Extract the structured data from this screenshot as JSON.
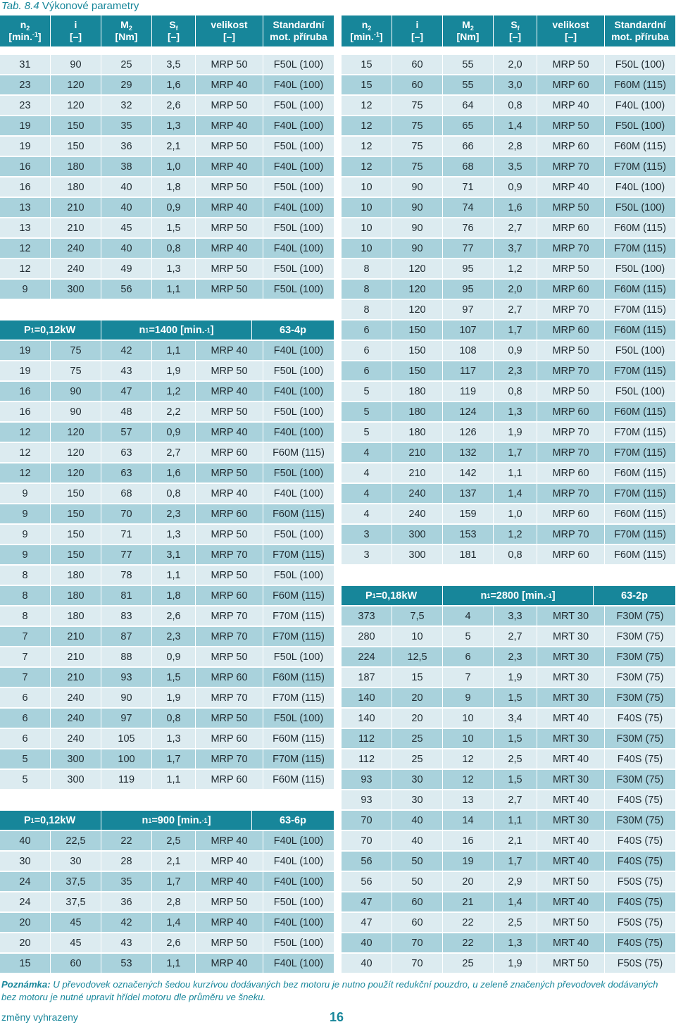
{
  "title": {
    "prefix": "Tab. 8.4 ",
    "text": "Výkonové parametry"
  },
  "header": {
    "n2": "n",
    "n2_sub": "2",
    "n2_unit_a": "[min.",
    "n2_unit_sup": "-1",
    "n2_unit_b": "]",
    "i": "i",
    "i_unit": "[–]",
    "m2": "M",
    "m2_sub": "2",
    "m2_unit": "[Nm]",
    "sf": "S",
    "sf_sub": "f",
    "sf_unit": "[–]",
    "size": "velikost",
    "size_unit": "[–]",
    "flange_a": "Standardní",
    "flange_b": "mot. příruba"
  },
  "left_sections": [
    {
      "header": null,
      "rows": [
        [
          "31",
          "90",
          "25",
          "3,5",
          "MRP 50",
          "F50L (100)"
        ],
        [
          "23",
          "120",
          "29",
          "1,6",
          "MRP 40",
          "F40L (100)"
        ],
        [
          "23",
          "120",
          "32",
          "2,6",
          "MRP 50",
          "F50L (100)"
        ],
        [
          "19",
          "150",
          "35",
          "1,3",
          "MRP 40",
          "F40L (100)"
        ],
        [
          "19",
          "150",
          "36",
          "2,1",
          "MRP 50",
          "F50L (100)"
        ],
        [
          "16",
          "180",
          "38",
          "1,0",
          "MRP 40",
          "F40L (100)"
        ],
        [
          "16",
          "180",
          "40",
          "1,8",
          "MRP 50",
          "F50L (100)"
        ],
        [
          "13",
          "210",
          "40",
          "0,9",
          "MRP 40",
          "F40L (100)"
        ],
        [
          "13",
          "210",
          "45",
          "1,5",
          "MRP 50",
          "F50L (100)"
        ],
        [
          "12",
          "240",
          "40",
          "0,8",
          "MRP 40",
          "F40L (100)"
        ],
        [
          "12",
          "240",
          "49",
          "1,3",
          "MRP 50",
          "F50L (100)"
        ],
        [
          "9",
          "300",
          "56",
          "1,1",
          "MRP 50",
          "F50L (100)"
        ]
      ]
    },
    {
      "header": {
        "p_a": "P",
        "p_sub": "1",
        "p_b": "=0,12kW",
        "n_a": "n",
        "n_sub": "1",
        "n_b": "=1400 [min.",
        "n_sup": "-1",
        "n_c": "]",
        "motor": "63-4p"
      },
      "rows": [
        [
          "19",
          "75",
          "42",
          "1,1",
          "MRP 40",
          "F40L (100)"
        ],
        [
          "19",
          "75",
          "43",
          "1,9",
          "MRP 50",
          "F50L (100)"
        ],
        [
          "16",
          "90",
          "47",
          "1,2",
          "MRP 40",
          "F40L (100)"
        ],
        [
          "16",
          "90",
          "48",
          "2,2",
          "MRP 50",
          "F50L (100)"
        ],
        [
          "12",
          "120",
          "57",
          "0,9",
          "MRP 40",
          "F40L (100)"
        ],
        [
          "12",
          "120",
          "63",
          "2,7",
          "MRP 60",
          "F60M (115)"
        ],
        [
          "12",
          "120",
          "63",
          "1,6",
          "MRP 50",
          "F50L (100)"
        ],
        [
          "9",
          "150",
          "68",
          "0,8",
          "MRP 40",
          "F40L (100)"
        ],
        [
          "9",
          "150",
          "70",
          "2,3",
          "MRP 60",
          "F60M (115)"
        ],
        [
          "9",
          "150",
          "71",
          "1,3",
          "MRP 50",
          "F50L (100)"
        ],
        [
          "9",
          "150",
          "77",
          "3,1",
          "MRP 70",
          "F70M (115)"
        ],
        [
          "8",
          "180",
          "78",
          "1,1",
          "MRP 50",
          "F50L (100)"
        ],
        [
          "8",
          "180",
          "81",
          "1,8",
          "MRP 60",
          "F60M (115)"
        ],
        [
          "8",
          "180",
          "83",
          "2,6",
          "MRP 70",
          "F70M (115)"
        ],
        [
          "7",
          "210",
          "87",
          "2,3",
          "MRP 70",
          "F70M (115)"
        ],
        [
          "7",
          "210",
          "88",
          "0,9",
          "MRP 50",
          "F50L (100)"
        ],
        [
          "7",
          "210",
          "93",
          "1,5",
          "MRP 60",
          "F60M (115)"
        ],
        [
          "6",
          "240",
          "90",
          "1,9",
          "MRP 70",
          "F70M (115)"
        ],
        [
          "6",
          "240",
          "97",
          "0,8",
          "MRP 50",
          "F50L (100)"
        ],
        [
          "6",
          "240",
          "105",
          "1,3",
          "MRP 60",
          "F60M (115)"
        ],
        [
          "5",
          "300",
          "100",
          "1,7",
          "MRP 70",
          "F70M (115)"
        ],
        [
          "5",
          "300",
          "119",
          "1,1",
          "MRP 60",
          "F60M (115)"
        ]
      ]
    },
    {
      "header": {
        "p_a": "P",
        "p_sub": "1",
        "p_b": "=0,12kW",
        "n_a": "n",
        "n_sub": "1",
        "n_b": "=900 [min.",
        "n_sup": "-1",
        "n_c": "]",
        "motor": "63-6p"
      },
      "rows": [
        [
          "40",
          "22,5",
          "22",
          "2,5",
          "MRP 40",
          "F40L (100)"
        ],
        [
          "30",
          "30",
          "28",
          "2,1",
          "MRP 40",
          "F40L (100)"
        ],
        [
          "24",
          "37,5",
          "35",
          "1,7",
          "MRP 40",
          "F40L (100)"
        ],
        [
          "24",
          "37,5",
          "36",
          "2,8",
          "MRP 50",
          "F50L (100)"
        ],
        [
          "20",
          "45",
          "42",
          "1,4",
          "MRP 40",
          "F40L (100)"
        ],
        [
          "20",
          "45",
          "43",
          "2,6",
          "MRP 50",
          "F50L (100)"
        ],
        [
          "15",
          "60",
          "53",
          "1,1",
          "MRP 40",
          "F40L (100)"
        ]
      ]
    }
  ],
  "right_sections": [
    {
      "header": null,
      "rows": [
        [
          "15",
          "60",
          "55",
          "2,0",
          "MRP 50",
          "F50L (100)"
        ],
        [
          "15",
          "60",
          "55",
          "3,0",
          "MRP 60",
          "F60M (115)"
        ],
        [
          "12",
          "75",
          "64",
          "0,8",
          "MRP 40",
          "F40L (100)"
        ],
        [
          "12",
          "75",
          "65",
          "1,4",
          "MRP 50",
          "F50L (100)"
        ],
        [
          "12",
          "75",
          "66",
          "2,8",
          "MRP 60",
          "F60M (115)"
        ],
        [
          "12",
          "75",
          "68",
          "3,5",
          "MRP 70",
          "F70M (115)"
        ],
        [
          "10",
          "90",
          "71",
          "0,9",
          "MRP 40",
          "F40L (100)"
        ],
        [
          "10",
          "90",
          "74",
          "1,6",
          "MRP 50",
          "F50L (100)"
        ],
        [
          "10",
          "90",
          "76",
          "2,7",
          "MRP 60",
          "F60M (115)"
        ],
        [
          "10",
          "90",
          "77",
          "3,7",
          "MRP 70",
          "F70M (115)"
        ],
        [
          "8",
          "120",
          "95",
          "1,2",
          "MRP 50",
          "F50L (100)"
        ],
        [
          "8",
          "120",
          "95",
          "2,0",
          "MRP 60",
          "F60M (115)"
        ],
        [
          "8",
          "120",
          "97",
          "2,7",
          "MRP 70",
          "F70M (115)"
        ],
        [
          "6",
          "150",
          "107",
          "1,7",
          "MRP 60",
          "F60M (115)"
        ],
        [
          "6",
          "150",
          "108",
          "0,9",
          "MRP 50",
          "F50L (100)"
        ],
        [
          "6",
          "150",
          "117",
          "2,3",
          "MRP 70",
          "F70M (115)"
        ],
        [
          "5",
          "180",
          "119",
          "0,8",
          "MRP 50",
          "F50L (100)"
        ],
        [
          "5",
          "180",
          "124",
          "1,3",
          "MRP 60",
          "F60M (115)"
        ],
        [
          "5",
          "180",
          "126",
          "1,9",
          "MRP 70",
          "F70M (115)"
        ],
        [
          "4",
          "210",
          "132",
          "1,7",
          "MRP 70",
          "F70M (115)"
        ],
        [
          "4",
          "210",
          "142",
          "1,1",
          "MRP 60",
          "F60M (115)"
        ],
        [
          "4",
          "240",
          "137",
          "1,4",
          "MRP 70",
          "F70M (115)"
        ],
        [
          "4",
          "240",
          "159",
          "1,0",
          "MRP 60",
          "F60M (115)"
        ],
        [
          "3",
          "300",
          "153",
          "1,2",
          "MRP 70",
          "F70M (115)"
        ],
        [
          "3",
          "300",
          "181",
          "0,8",
          "MRP 60",
          "F60M (115)"
        ]
      ]
    },
    {
      "header": {
        "p_a": "P",
        "p_sub": "1",
        "p_b": "=0,18kW",
        "n_a": "n",
        "n_sub": "1",
        "n_b": "=2800 [min.",
        "n_sup": "-1",
        "n_c": "]",
        "motor": "63-2p"
      },
      "rows": [
        [
          "373",
          "7,5",
          "4",
          "3,3",
          "MRT 30",
          "F30M (75)"
        ],
        [
          "280",
          "10",
          "5",
          "2,7",
          "MRT 30",
          "F30M (75)"
        ],
        [
          "224",
          "12,5",
          "6",
          "2,3",
          "MRT 30",
          "F30M (75)"
        ],
        [
          "187",
          "15",
          "7",
          "1,9",
          "MRT 30",
          "F30M (75)"
        ],
        [
          "140",
          "20",
          "9",
          "1,5",
          "MRT 30",
          "F30M (75)"
        ],
        [
          "140",
          "20",
          "10",
          "3,4",
          "MRT 40",
          "F40S (75)"
        ],
        [
          "112",
          "25",
          "10",
          "1,5",
          "MRT 30",
          "F30M (75)"
        ],
        [
          "112",
          "25",
          "12",
          "2,5",
          "MRT 40",
          "F40S (75)"
        ],
        [
          "93",
          "30",
          "12",
          "1,5",
          "MRT 30",
          "F30M (75)"
        ],
        [
          "93",
          "30",
          "13",
          "2,7",
          "MRT 40",
          "F40S (75)"
        ],
        [
          "70",
          "40",
          "14",
          "1,1",
          "MRT 30",
          "F30M (75)"
        ],
        [
          "70",
          "40",
          "16",
          "2,1",
          "MRT 40",
          "F40S (75)"
        ],
        [
          "56",
          "50",
          "19",
          "1,7",
          "MRT 40",
          "F40S (75)"
        ],
        [
          "56",
          "50",
          "20",
          "2,9",
          "MRT 50",
          "F50S (75)"
        ],
        [
          "47",
          "60",
          "21",
          "1,4",
          "MRT 40",
          "F40S (75)"
        ],
        [
          "47",
          "60",
          "22",
          "2,5",
          "MRT 50",
          "F50S (75)"
        ],
        [
          "40",
          "70",
          "22",
          "1,3",
          "MRT 40",
          "F40S (75)"
        ],
        [
          "40",
          "70",
          "25",
          "1,9",
          "MRT 50",
          "F50S (75)"
        ]
      ]
    }
  ],
  "note": {
    "label": "Poznámka:",
    "text": " U převodovek označených šedou kurzívou dodávaných bez motoru je nutno použít redukční pouzdro, u zeleně značených převodovek dodávaných bez motoru je nutné upravit hřídel motoru dle průměru ve šneku."
  },
  "footer": {
    "left": "změny vyhrazeny",
    "page": "16"
  }
}
